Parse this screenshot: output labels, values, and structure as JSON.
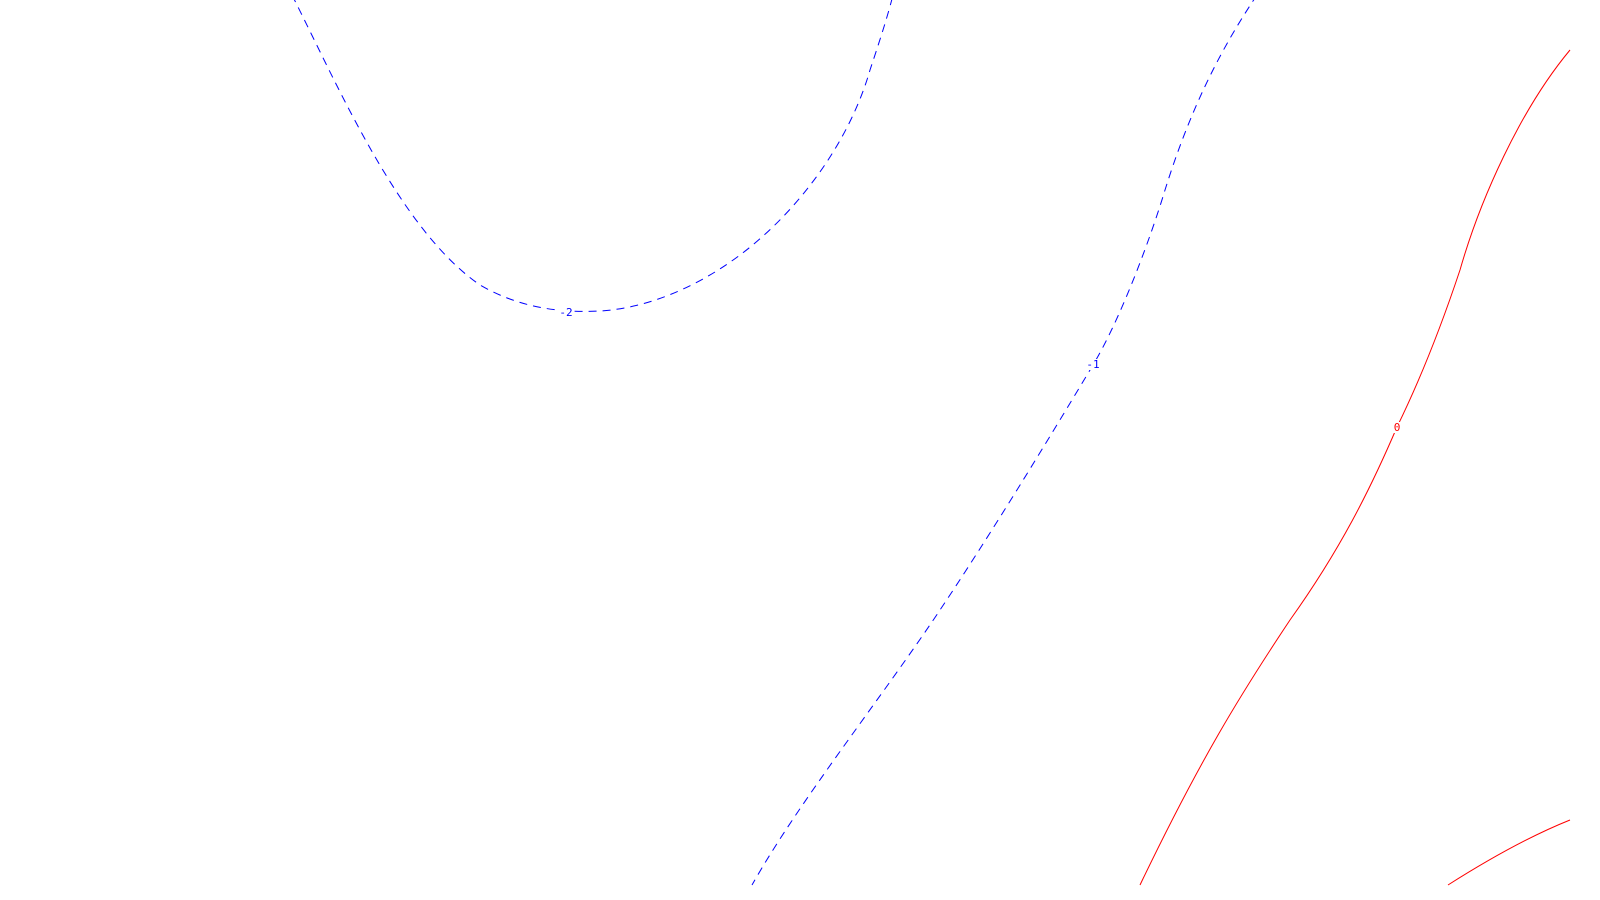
{
  "chart_data": {
    "type": "contour",
    "title": "",
    "xlabel": "",
    "ylabel": "",
    "grid": false,
    "legend": "none",
    "contours": [
      {
        "level": -2,
        "label": "-2",
        "color": "#0000ff",
        "style": "dashed"
      },
      {
        "level": -1,
        "label": "-1",
        "color": "#0000ff",
        "style": "dashed"
      },
      {
        "level": 0,
        "label": "0",
        "color": "#ff0000",
        "style": "solid"
      },
      {
        "level": 1,
        "label": "",
        "color": "#ff0000",
        "style": "solid"
      }
    ]
  }
}
